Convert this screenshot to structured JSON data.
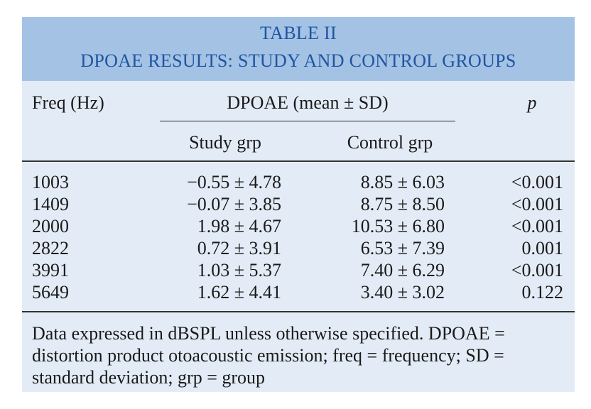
{
  "table": {
    "title_line1": "TABLE II",
    "title_line2": "DPOAE RESULTS: STUDY AND CONTROL GROUPS",
    "headers": {
      "freq": "Freq (Hz)",
      "dpoae_group": "DPOAE (mean ± SD)",
      "p": "p",
      "study": "Study grp",
      "control": "Control grp"
    },
    "rows": [
      {
        "freq": "1003",
        "study": "−0.55 ± 4.78",
        "control": "8.85 ± 6.03",
        "p": "<0.001"
      },
      {
        "freq": "1409",
        "study": "−0.07 ± 3.85",
        "control": "8.75 ± 8.50",
        "p": "<0.001"
      },
      {
        "freq": "2000",
        "study": "1.98 ± 4.67",
        "control": "10.53 ± 6.80",
        "p": "<0.001"
      },
      {
        "freq": "2822",
        "study": "0.72 ± 3.91",
        "control": "6.53 ± 7.39",
        "p": "0.001"
      },
      {
        "freq": "3991",
        "study": "1.03 ± 5.37",
        "control": "7.40 ± 6.29",
        "p": "<0.001"
      },
      {
        "freq": "5649",
        "study": "1.62 ± 4.41",
        "control": "3.40 ± 3.02",
        "p": "0.122"
      }
    ],
    "footnote": "Data expressed in dBSPL unless otherwise specified. DPOAE = distortion product otoacoustic emission; freq = frequency; SD = standard deviation; grp = group"
  },
  "colors": {
    "title_band": "#a4c2e4",
    "title_text": "#1f55a2",
    "table_background": "#e3ecf6"
  }
}
